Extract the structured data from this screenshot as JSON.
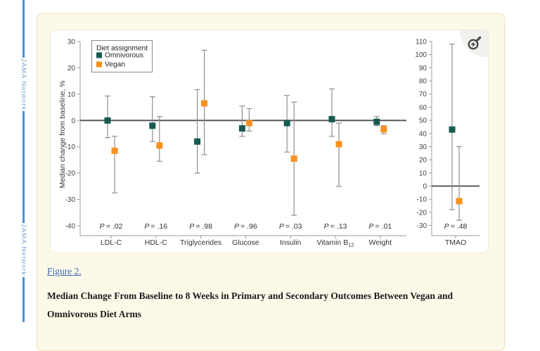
{
  "watermark": {
    "label": "JAMA Network"
  },
  "figure": {
    "link_label": "Figure 2.",
    "caption": "Median Change From Baseline to 8 Weeks in Primary and Secondary Outcomes Between Vegan and Omnivorous Diet Arms"
  },
  "zoom_button": {
    "icon": "magnifier-plus-icon"
  },
  "colors": {
    "omnivorous_teal": "#185a52",
    "vegan_orange": "#f9911e",
    "error_bar_gray": "#8f8f8f",
    "zero_line_gray": "#57585a",
    "axis_gray": "#9b9b9b",
    "watermark_blue": "#4a90d9",
    "link_blue": "#3b66ac",
    "panel_cream": "#fdf9e9",
    "panel_border": "#f3dcba"
  },
  "chart_data": {
    "type": "scatter",
    "title": "",
    "ylabel": "Median change from baseline, %",
    "grid": false,
    "legend": {
      "position": "top-left",
      "title": "Diet assignment",
      "entries": [
        {
          "label": "Omnivorous",
          "marker": "square",
          "color": "#185a52"
        },
        {
          "label": "Vegan",
          "marker": "square",
          "color": "#f9911e"
        }
      ]
    },
    "panels": [
      {
        "name": "primary-and-secondary-outcomes",
        "ylim": [
          -40,
          30
        ],
        "yticks": [
          30,
          20,
          10,
          0,
          -10,
          -20,
          -30,
          -40
        ],
        "zero_line": true,
        "categories": [
          {
            "label": "LDL-C",
            "p_value": "P = .02"
          },
          {
            "label": "HDL-C",
            "p_value": "P = .16"
          },
          {
            "label": "Triglycerides",
            "p_value": "P = .98"
          },
          {
            "label": "Glucose",
            "p_value": "P = .96"
          },
          {
            "label": "Insulin",
            "p_value": "P = .03"
          },
          {
            "label": "Vitamin B",
            "sub": "12",
            "p_value": "P = .13"
          },
          {
            "label": "Weight",
            "p_value": "P = .01"
          }
        ],
        "series": [
          {
            "name": "Omnivorous",
            "medians": [
              0,
              -2,
              -8,
              -3,
              -1,
              0.5,
              -0.5
            ],
            "ci_low": [
              -6.5,
              -8,
              -20,
              -6,
              -12,
              -6,
              -2
            ],
            "ci_high": [
              9.3,
              9,
              11.7,
              5.5,
              9.5,
              12,
              1.5
            ]
          },
          {
            "name": "Vegan",
            "medians": [
              -11.5,
              -9.5,
              6.5,
              -1,
              -14.5,
              -9,
              -3.3
            ],
            "ci_low": [
              -27.5,
              -15.5,
              -13,
              -4,
              -36,
              -25,
              -5
            ],
            "ci_high": [
              -6,
              1.5,
              26.7,
              4.5,
              7,
              -1,
              -2
            ]
          }
        ]
      },
      {
        "name": "tmao",
        "ylim": [
          -30,
          110
        ],
        "yticks": [
          110,
          100,
          90,
          80,
          70,
          60,
          50,
          40,
          30,
          20,
          10,
          0,
          -10,
          -20,
          -30
        ],
        "zero_line": true,
        "categories": [
          {
            "label": "TMAO",
            "p_value": "P = .48"
          }
        ],
        "series": [
          {
            "name": "Omnivorous",
            "medians": [
              43
            ],
            "ci_low": [
              -18
            ],
            "ci_high": [
              108
            ]
          },
          {
            "name": "Vegan",
            "medians": [
              -11.5
            ],
            "ci_low": [
              -26
            ],
            "ci_high": [
              30
            ]
          }
        ]
      }
    ]
  }
}
